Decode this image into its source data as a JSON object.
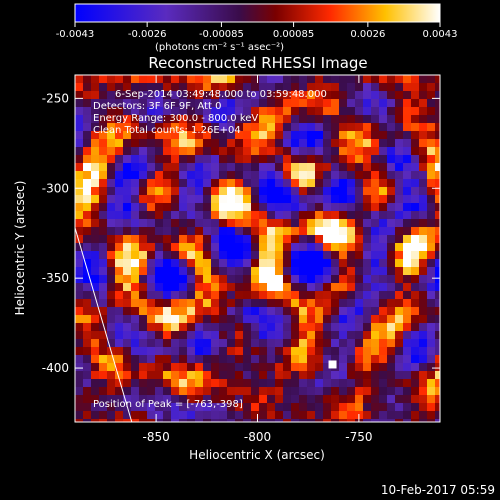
{
  "colorbar": {
    "ticks": [
      "-0.0043",
      "-0.0026",
      "-0.00085",
      "0.00085",
      "0.0026",
      "0.0043"
    ],
    "unit_label": "(photons cm⁻² s⁻¹ asec⁻²)",
    "range": [
      -0.0043,
      0.0043
    ]
  },
  "chart_data": {
    "type": "heatmap",
    "title": "Reconstructed RHESSI Image",
    "xlabel": "Heliocentric X (arcsec)",
    "ylabel": "Heliocentric Y (arcsec)",
    "xlim": [
      -890,
      -710
    ],
    "ylim": [
      -430,
      -237
    ],
    "x_ticks": [
      "-850",
      "-800",
      "-750"
    ],
    "x_tick_values": [
      -850,
      -800,
      -750
    ],
    "y_ticks": [
      "-250",
      "-300",
      "-350",
      "-400"
    ],
    "y_tick_values": [
      -250,
      -300,
      -350,
      -400
    ],
    "colormap": "blue-purple-red-yellow-white",
    "annotations": [
      "6-Sep-2014 03:49:48.000 to 03:59:48.000",
      "Detectors: 3F 6F 9F, Att 0",
      "Energy Range: 300.0 - 800.0 keV",
      "Clean     Total counts: 1.26E+04"
    ],
    "peak_label": "Position of Peak = [-763,-398]",
    "peak": [
      -763,
      -398
    ],
    "limb_line": {
      "x": [
        -890,
        -862
      ],
      "y": [
        -322,
        -430
      ]
    }
  },
  "footer": {
    "timestamp": "10-Feb-2017 05:59"
  }
}
